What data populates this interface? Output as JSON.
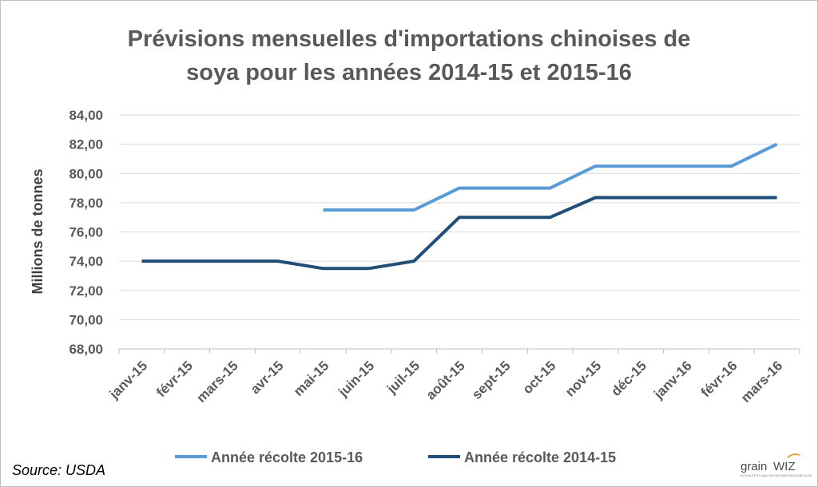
{
  "chart_data": {
    "type": "line",
    "title_lines": [
      "Prévisions mensuelles d'importations chinoises de",
      "soya pour les années 2014-15 et 2015-16"
    ],
    "ylabel": "Millions de tonnes",
    "xlabel": "",
    "categories": [
      "janv-15",
      "févr-15",
      "mars-15",
      "avr-15",
      "mai-15",
      "juin-15",
      "juil-15",
      "août-15",
      "sept-15",
      "oct-15",
      "nov-15",
      "déc-15",
      "janv-16",
      "févr-16",
      "mars-16"
    ],
    "ylim": [
      68,
      84
    ],
    "yticks": [
      "68,00",
      "70,00",
      "72,00",
      "74,00",
      "76,00",
      "78,00",
      "80,00",
      "82,00",
      "84,00"
    ],
    "grid": true,
    "legend_position": "bottom",
    "series": [
      {
        "name": "Année récolte 2015-16",
        "color": "#5b9bd5",
        "values": [
          null,
          null,
          null,
          null,
          77.5,
          77.5,
          77.5,
          79.0,
          79.0,
          79.0,
          80.5,
          80.5,
          80.5,
          80.5,
          82.0
        ]
      },
      {
        "name": "Année récolte 2014-15",
        "color": "#1f4e79",
        "values": [
          74.0,
          74.0,
          74.0,
          74.0,
          73.5,
          73.5,
          74.0,
          77.0,
          77.0,
          77.0,
          78.35,
          78.35,
          78.35,
          78.35,
          78.35
        ]
      }
    ]
  },
  "source": "Source: USDA",
  "logo": {
    "text_left": "grain",
    "text_right": "WIZ",
    "tagline": "ACTUALITÉ ET ANALYSE DES MARCHÉS AGRICOLES"
  }
}
